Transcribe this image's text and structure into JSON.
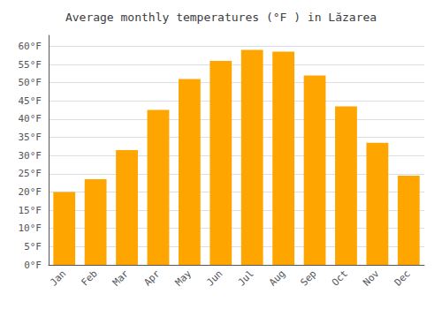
{
  "chart_data": {
    "type": "bar",
    "title": "Average monthly temperatures (°F ) in Lăzarea",
    "categories": [
      "Jan",
      "Feb",
      "Mar",
      "Apr",
      "May",
      "Jun",
      "Jul",
      "Aug",
      "Sep",
      "Oct",
      "Nov",
      "Dec"
    ],
    "values": [
      20,
      23.5,
      31.5,
      42.5,
      51,
      56,
      59,
      58.5,
      52,
      43.5,
      33.5,
      24.5
    ],
    "color": "#FFA500",
    "ylim": [
      0,
      63
    ],
    "yticks": [
      {
        "value": 0,
        "label": "0°F"
      },
      {
        "value": 5,
        "label": "5°F"
      },
      {
        "value": 10,
        "label": "10°F"
      },
      {
        "value": 15,
        "label": "15°F"
      },
      {
        "value": 20,
        "label": "20°F"
      },
      {
        "value": 25,
        "label": "25°F"
      },
      {
        "value": 30,
        "label": "30°F"
      },
      {
        "value": 35,
        "label": "35°F"
      },
      {
        "value": 40,
        "label": "40°F"
      },
      {
        "value": 45,
        "label": "45°F"
      },
      {
        "value": 50,
        "label": "50°F"
      },
      {
        "value": 55,
        "label": "55°F"
      },
      {
        "value": 60,
        "label": "60°F"
      }
    ],
    "grid": true
  }
}
